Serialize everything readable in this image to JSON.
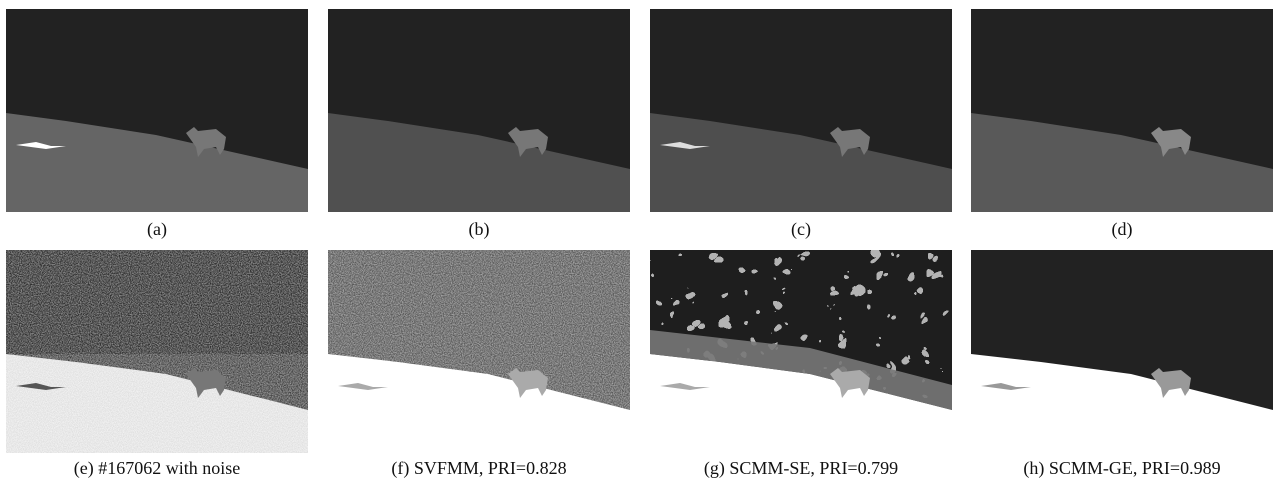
{
  "figure": {
    "panels": [
      {
        "caption": "(a)"
      },
      {
        "caption": "(b)"
      },
      {
        "caption": "(c)"
      },
      {
        "caption": "(d)"
      },
      {
        "caption": "(e) #167062 with noise"
      },
      {
        "caption": "(f) SVFMM, PRI=0.828"
      },
      {
        "caption": "(g) SCMM-SE, PRI=0.799"
      },
      {
        "caption": "(h) SCMM-GE, PRI=0.989"
      }
    ]
  }
}
